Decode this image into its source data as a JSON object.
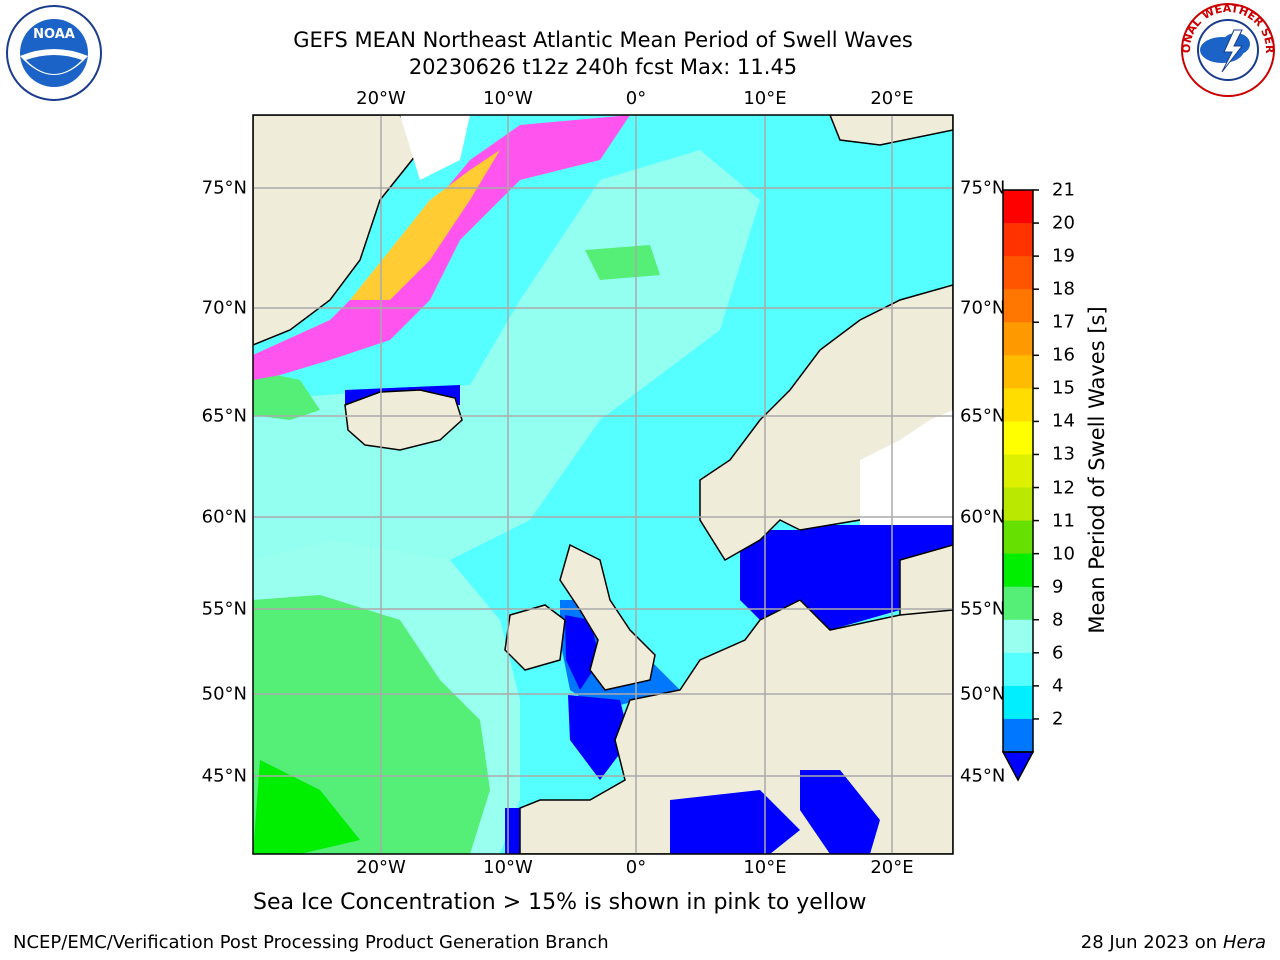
{
  "title": {
    "line1": "GEFS MEAN Northeast Atlantic Mean Period of Swell Waves",
    "line2": "20230626 t12z 240h fcst   Max: 11.45"
  },
  "lon_labels": [
    "20°W",
    "10°W",
    "0°",
    "10°E",
    "20°E"
  ],
  "lat_labels": [
    "75°N",
    "70°N",
    "65°N",
    "60°N",
    "55°N",
    "50°N",
    "45°N"
  ],
  "colorbar": {
    "label": "Mean Period of Swell Waves [s]",
    "ticks": [
      "21",
      "20",
      "19",
      "18",
      "17",
      "16",
      "15",
      "14",
      "13",
      "12",
      "11",
      "10",
      "9",
      "8",
      "6",
      "4",
      "2"
    ],
    "colors": [
      "#ff0000",
      "#ff3300",
      "#ff5500",
      "#ff7700",
      "#ff9900",
      "#ffbb00",
      "#ffdd00",
      "#ffff00",
      "#ddf000",
      "#bbe800",
      "#66e000",
      "#00ee00",
      "#55ee77",
      "#99ffee",
      "#55ffff",
      "#00eeff",
      "#0077ff"
    ],
    "extend_color": "#0000ff"
  },
  "note": "Sea Ice Concentration > 15% is shown in pink to yellow",
  "footer": {
    "left": "NCEP/EMC/Verification Post Processing Product Generation Branch",
    "date": "28 Jun 2023 on",
    "host": "Hera"
  },
  "logos": {
    "noaa": "NOAA",
    "nws": "NATIONAL WEATHER SERVICE"
  }
}
